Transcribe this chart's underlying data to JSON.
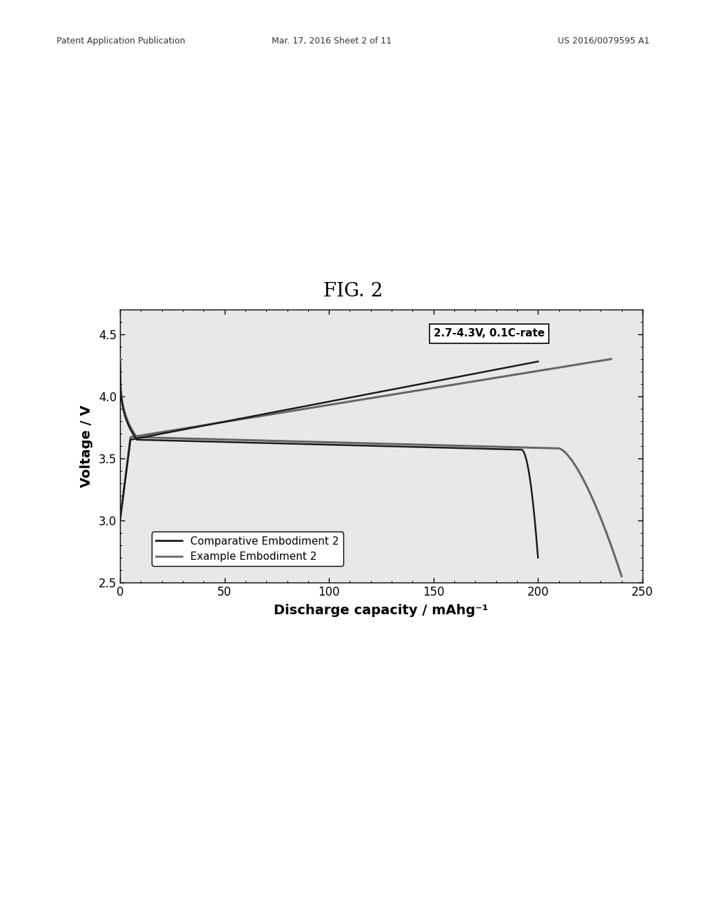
{
  "title": "FIG. 2",
  "xlabel": "Discharge capacity / mAhg⁻¹",
  "ylabel": "Voltage / V",
  "annotation": "2.7-4.3V, 0.1C-rate",
  "header_left": "Patent Application Publication",
  "header_mid": "Mar. 17, 2016 Sheet 2 of 11",
  "header_right": "US 2016/0079595 A1",
  "xlim": [
    0,
    250
  ],
  "ylim": [
    2.5,
    4.7
  ],
  "xticks": [
    0,
    50,
    100,
    150,
    200,
    250
  ],
  "yticks": [
    2.5,
    3.0,
    3.5,
    4.0,
    4.5
  ],
  "legend_labels": [
    "Comparative Embodiment 2",
    "Example Embodiment 2"
  ],
  "line1_color": "#1a1a1a",
  "line2_color": "#666666",
  "bg_color": "#e8e8e8",
  "fig_bg": "#ffffff"
}
